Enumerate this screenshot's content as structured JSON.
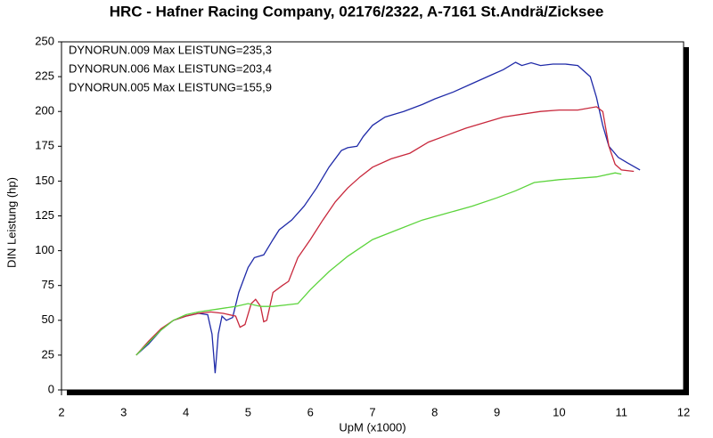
{
  "chart_data": {
    "type": "line",
    "title": "HRC - Hafner Racing Company, 02176/2322, A-7161 St.Andrä/Zicksee",
    "x_label": "UpM (x1000)",
    "y_label": "DIN Leistung (hp)",
    "xlim": [
      2,
      12
    ],
    "ylim": [
      0,
      250
    ],
    "xticks": [
      2,
      3,
      4,
      5,
      6,
      7,
      8,
      9,
      10,
      11,
      12
    ],
    "yticks": [
      0,
      25,
      50,
      75,
      100,
      125,
      150,
      175,
      200,
      225,
      250
    ],
    "grid": false,
    "legend": "upper left",
    "series": [
      {
        "name": "DYNORUN.009  Max LEISTUNG=235,3",
        "color": "#1f2aa8",
        "x": [
          3.2,
          3.4,
          3.6,
          3.8,
          4.0,
          4.2,
          4.35,
          4.42,
          4.47,
          4.52,
          4.58,
          4.65,
          4.75,
          4.85,
          5.0,
          5.1,
          5.25,
          5.4,
          5.5,
          5.7,
          5.9,
          6.1,
          6.3,
          6.5,
          6.6,
          6.75,
          6.85,
          7.0,
          7.2,
          7.5,
          7.8,
          8.0,
          8.3,
          8.6,
          8.9,
          9.1,
          9.3,
          9.4,
          9.55,
          9.7,
          9.9,
          10.1,
          10.3,
          10.5,
          10.6,
          10.7,
          10.8,
          10.95,
          11.1,
          11.3
        ],
        "values": [
          25,
          33,
          43,
          50,
          53,
          55,
          54,
          40,
          12,
          40,
          53,
          50,
          52,
          70,
          88,
          95,
          97,
          108,
          115,
          122,
          132,
          145,
          160,
          172,
          174,
          175,
          182,
          190,
          196,
          200,
          205,
          209,
          214,
          220,
          226,
          230,
          235.3,
          233,
          235,
          233,
          234,
          234,
          233,
          225,
          210,
          190,
          175,
          167,
          163,
          158
        ]
      },
      {
        "name": "DYNORUN.006  Max LEISTUNG=203,4",
        "color": "#c8283c",
        "x": [
          3.2,
          3.4,
          3.6,
          3.8,
          4.0,
          4.2,
          4.4,
          4.6,
          4.8,
          4.87,
          4.95,
          5.05,
          5.12,
          5.2,
          5.25,
          5.3,
          5.4,
          5.55,
          5.65,
          5.8,
          6.0,
          6.2,
          6.4,
          6.6,
          6.8,
          7.0,
          7.3,
          7.6,
          7.9,
          8.2,
          8.5,
          8.8,
          9.1,
          9.4,
          9.7,
          10.0,
          10.3,
          10.6,
          10.7,
          10.8,
          10.9,
          11.0,
          11.2
        ],
        "values": [
          25,
          35,
          44,
          50,
          53,
          55,
          56,
          55,
          53,
          45,
          47,
          62,
          65,
          60,
          49,
          50,
          70,
          75,
          78,
          95,
          108,
          122,
          135,
          145,
          153,
          160,
          166,
          170,
          178,
          183,
          188,
          192,
          196,
          198,
          200,
          201,
          201,
          203.4,
          200,
          175,
          162,
          158,
          157
        ]
      },
      {
        "name": "DYNORUN.005  Max LEISTUNG=155,9",
        "color": "#5cd43c",
        "x": [
          3.2,
          3.4,
          3.6,
          3.8,
          4.0,
          4.2,
          4.5,
          4.8,
          5.0,
          5.2,
          5.4,
          5.6,
          5.8,
          6.0,
          6.3,
          6.6,
          7.0,
          7.4,
          7.8,
          8.2,
          8.6,
          9.0,
          9.3,
          9.6,
          10.0,
          10.3,
          10.6,
          10.9,
          11.0
        ],
        "values": [
          25,
          34,
          43,
          50,
          54,
          56,
          58,
          60,
          62,
          60,
          60,
          61,
          62,
          72,
          85,
          96,
          108,
          115,
          122,
          127,
          132,
          138,
          143,
          149,
          151,
          152,
          153,
          155.9,
          155
        ]
      }
    ]
  }
}
